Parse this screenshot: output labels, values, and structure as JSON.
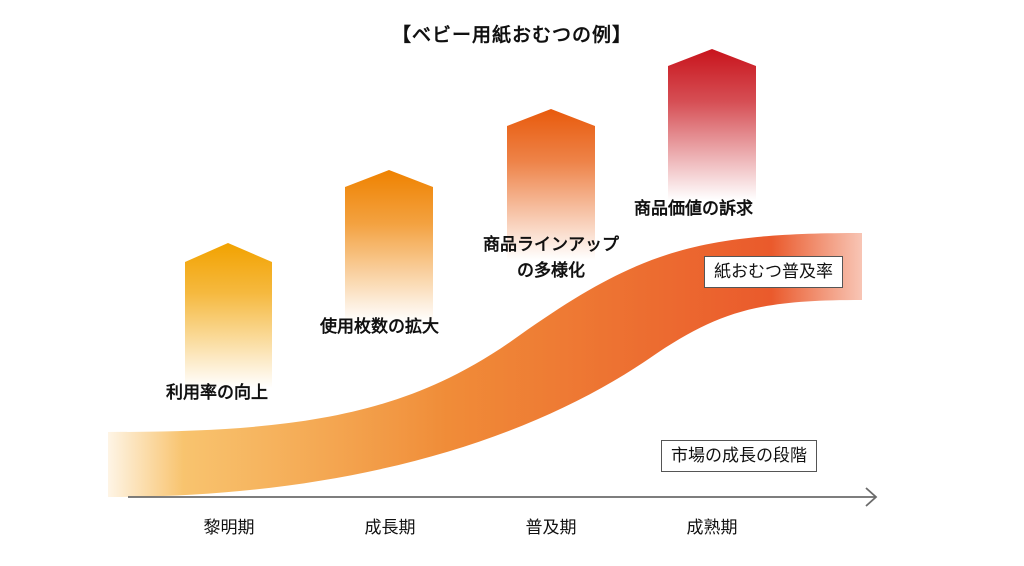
{
  "title": "【ベビー用紙おむつの例】",
  "stages": [
    "黎明期",
    "成長期",
    "普及期",
    "成熟期"
  ],
  "arrows": [
    {
      "label": "利用率の向上",
      "color": "#f2a200"
    },
    {
      "label": "使用枚数の拡大",
      "color": "#ef8200"
    },
    {
      "label": "商品ラインアップ\nの多様化",
      "color": "#e85a0c"
    },
    {
      "label": "商品価値の訴求",
      "color": "#c8141c"
    }
  ],
  "band_label": "紙おむつ普及率",
  "axis_label": "市場の成長の段階",
  "colors": {
    "band_start": "#f7b955",
    "band_mid": "#f08c38",
    "band_end": "#ea5a2c",
    "axis": "#6b6b6b"
  }
}
